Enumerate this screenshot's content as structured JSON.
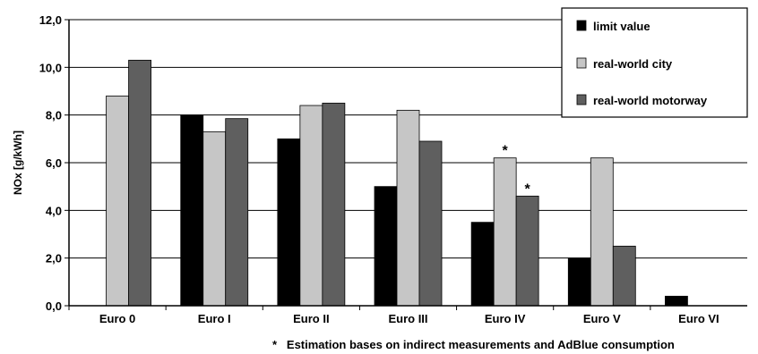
{
  "chart_data": {
    "type": "bar",
    "categories": [
      "Euro 0",
      "Euro I",
      "Euro II",
      "Euro III",
      "Euro IV",
      "Euro V",
      "Euro VI"
    ],
    "series": [
      {
        "name": "limit value",
        "values": [
          null,
          8.0,
          7.0,
          5.0,
          3.5,
          2.0,
          0.4
        ],
        "color": "#000000"
      },
      {
        "name": "real-world city",
        "values": [
          8.8,
          7.3,
          8.4,
          8.2,
          6.2,
          6.2,
          null
        ],
        "color": "#c6c6c6"
      },
      {
        "name": "real-world motorway",
        "values": [
          10.3,
          7.85,
          8.5,
          6.9,
          4.6,
          2.5,
          null
        ],
        "color": "#5f5f5f"
      }
    ],
    "ylabel": "NOx [g/kWh]",
    "ylim": [
      0,
      12
    ],
    "yticks": [
      "0,0",
      "2,0",
      "4,0",
      "6,0",
      "8,0",
      "10,0",
      "12,0"
    ],
    "grid": true,
    "legend_position": "top-right",
    "annotations": [
      {
        "marker": "*",
        "category": "Euro IV",
        "series": "real-world city"
      },
      {
        "marker": "*",
        "category": "Euro IV",
        "series": "real-world motorway"
      }
    ],
    "footnote": "*   Estimation bases on indirect measurements and AdBlue consumption"
  }
}
